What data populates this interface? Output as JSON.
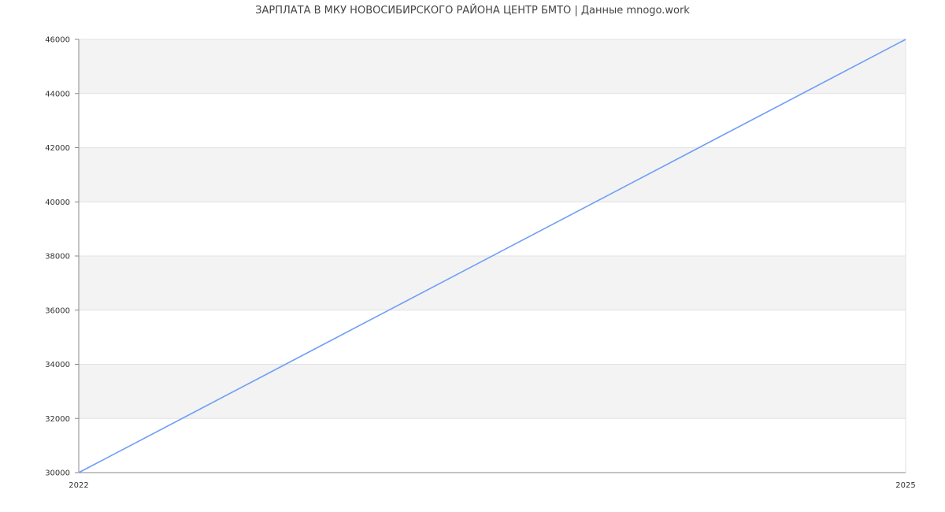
{
  "chart_data": {
    "type": "line",
    "title": "ЗАРПЛАТА В МКУ НОВОСИБИРСКОГО РАЙОНА ЦЕНТР БМТО | Данные mnogo.work",
    "xlabel": "",
    "ylabel": "",
    "x": [
      2022,
      2025
    ],
    "series": [
      {
        "values": [
          30000,
          46000
        ],
        "color": "#6f9ef5"
      }
    ],
    "xlim": [
      2022,
      2025
    ],
    "ylim": [
      30000,
      46000
    ],
    "xticks": [
      "2022",
      "2025"
    ],
    "yticks": [
      "30000",
      "32000",
      "34000",
      "36000",
      "38000",
      "40000",
      "42000",
      "44000",
      "46000"
    ],
    "grid": true,
    "band_color": "#f3f3f3"
  }
}
